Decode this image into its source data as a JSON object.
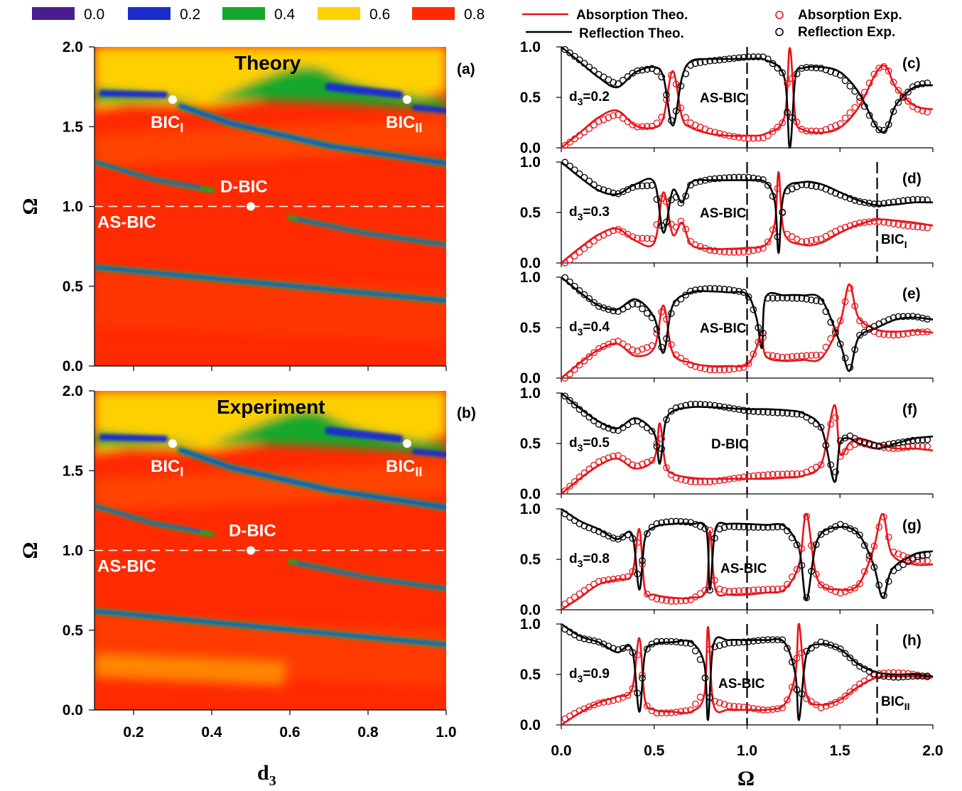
{
  "colorbar": {
    "items": [
      {
        "label": "0.0",
        "color": "#4b1e8f"
      },
      {
        "label": "0.2",
        "color": "#1a2dcc"
      },
      {
        "label": "0.4",
        "color": "#16a82a"
      },
      {
        "label": "0.6",
        "color": "#ffd000"
      },
      {
        "label": "0.8",
        "color": "#ff2a00"
      }
    ]
  },
  "legend": {
    "abs_theo": "Absorption Theo.",
    "ref_theo": "Reflection Theo.",
    "abs_exp": "Absorption Exp.",
    "ref_exp": "Reflection Exp.",
    "abs_color": "#e8141b",
    "ref_color": "#000000"
  },
  "left": {
    "xlabel": "d3",
    "xticks": [
      "0.2",
      "0.4",
      "0.6",
      "0.8",
      "1.0"
    ],
    "ylabel": "Ω",
    "yticks": [
      "0.0",
      "0.5",
      "1.0",
      "1.5",
      "2.0"
    ],
    "panels": [
      {
        "id": "a",
        "tag": "(a)",
        "title": "Theory",
        "bic1": "BIC",
        "bic1sub": "I",
        "bic2": "BIC",
        "bic2sub": "II",
        "dbic": "D-BIC",
        "asbic": "AS-BIC"
      },
      {
        "id": "b",
        "tag": "(b)",
        "title": "Experiment",
        "bic1": "BIC",
        "bic1sub": "I",
        "bic2": "BIC",
        "bic2sub": "II",
        "dbic": "D-BIC",
        "asbic": "AS-BIC"
      }
    ]
  },
  "right": {
    "xlabel": "Ω",
    "xticks": [
      "0.0",
      "0.5",
      "1.0",
      "1.5",
      "2.0"
    ],
    "yticks": [
      "0.0",
      "0.5",
      "1.0"
    ],
    "panels": [
      {
        "id": "c",
        "tag": "(c)",
        "d3": "d",
        "d3sub": "3",
        "d3val": "=0.2",
        "center": "AS-BIC"
      },
      {
        "id": "d",
        "tag": "(d)",
        "d3": "d",
        "d3sub": "3",
        "d3val": "=0.3",
        "center": "AS-BIC",
        "side": "BIC",
        "sidesub": "I"
      },
      {
        "id": "e",
        "tag": "(e)",
        "d3": "d",
        "d3sub": "3",
        "d3val": "=0.4",
        "center": "AS-BIC"
      },
      {
        "id": "f",
        "tag": "(f)",
        "d3": "d",
        "d3sub": "3",
        "d3val": "=0.5",
        "center": "D-BIC"
      },
      {
        "id": "g",
        "tag": "(g)",
        "d3": "d",
        "d3sub": "3",
        "d3val": "=0.8",
        "center": "AS-BIC"
      },
      {
        "id": "h",
        "tag": "(h)",
        "d3": "d",
        "d3sub": "3",
        "d3val": "=0.9",
        "center": "AS-BIC",
        "side": "BIC",
        "sidesub": "II"
      }
    ]
  },
  "chart_data": [
    {
      "type": "heatmap",
      "panel": "(a)",
      "title": "Theory",
      "xlabel": "d3",
      "ylabel": "Ω",
      "xlim": [
        0.1,
        1.0
      ],
      "ylim": [
        0.0,
        2.0
      ],
      "colorbar_levels": [
        0.0,
        0.2,
        0.4,
        0.6,
        0.8
      ],
      "points": [
        {
          "name": "BIC_I",
          "x": 0.3,
          "y": 1.67
        },
        {
          "name": "BIC_II",
          "x": 0.9,
          "y": 1.67
        },
        {
          "name": "D-BIC",
          "x": 0.5,
          "y": 1.0
        }
      ],
      "reference_line": {
        "name": "AS-BIC",
        "y": 1.0
      }
    },
    {
      "type": "heatmap",
      "panel": "(b)",
      "title": "Experiment",
      "xlabel": "d3",
      "ylabel": "Ω",
      "xlim": [
        0.1,
        1.0
      ],
      "ylim": [
        0.0,
        2.0
      ],
      "colorbar_levels": [
        0.0,
        0.2,
        0.4,
        0.6,
        0.8
      ],
      "points": [
        {
          "name": "BIC_I",
          "x": 0.3,
          "y": 1.67
        },
        {
          "name": "BIC_II",
          "x": 0.9,
          "y": 1.67
        },
        {
          "name": "D-BIC",
          "x": 0.5,
          "y": 1.0
        }
      ],
      "reference_line": {
        "name": "AS-BIC",
        "y": 1.0
      }
    },
    {
      "type": "line",
      "panel": "(c)",
      "d3": 0.2,
      "xlim": [
        0,
        2
      ],
      "ylim": [
        0,
        1
      ],
      "vlines": [
        1.0
      ],
      "x": [
        0.0,
        0.1,
        0.2,
        0.3,
        0.4,
        0.5,
        0.55,
        0.6,
        0.65,
        0.7,
        0.8,
        0.9,
        1.0,
        1.1,
        1.2,
        1.23,
        1.26,
        1.3,
        1.4,
        1.5,
        1.6,
        1.7,
        1.75,
        1.8,
        1.9,
        2.0
      ],
      "series": [
        {
          "name": "Absorption Theo.",
          "values": [
            0.0,
            0.15,
            0.3,
            0.37,
            0.22,
            0.2,
            0.3,
            0.76,
            0.3,
            0.2,
            0.14,
            0.12,
            0.12,
            0.14,
            0.3,
            0.99,
            0.3,
            0.18,
            0.15,
            0.2,
            0.4,
            0.76,
            0.8,
            0.6,
            0.42,
            0.38
          ]
        },
        {
          "name": "Reflection Theo.",
          "values": [
            1.0,
            0.85,
            0.7,
            0.6,
            0.75,
            0.8,
            0.7,
            0.22,
            0.7,
            0.86,
            0.88,
            0.88,
            0.88,
            0.87,
            0.7,
            0.0,
            0.7,
            0.79,
            0.8,
            0.75,
            0.55,
            0.2,
            0.18,
            0.42,
            0.6,
            0.62
          ]
        }
      ]
    },
    {
      "type": "line",
      "panel": "(d)",
      "d3": 0.3,
      "xlim": [
        0,
        2
      ],
      "ylim": [
        0,
        1
      ],
      "vlines": [
        1.0,
        1.7
      ],
      "x": [
        0.0,
        0.1,
        0.2,
        0.3,
        0.4,
        0.5,
        0.55,
        0.6,
        0.65,
        0.7,
        0.8,
        0.9,
        1.0,
        1.1,
        1.15,
        1.17,
        1.2,
        1.3,
        1.4,
        1.5,
        1.6,
        1.7,
        1.8,
        1.9,
        2.0
      ],
      "series": [
        {
          "name": "Absorption Theo.",
          "values": [
            0.0,
            0.15,
            0.28,
            0.34,
            0.22,
            0.2,
            0.7,
            0.28,
            0.4,
            0.18,
            0.14,
            0.14,
            0.15,
            0.18,
            0.4,
            0.9,
            0.3,
            0.18,
            0.2,
            0.3,
            0.38,
            0.43,
            0.42,
            0.4,
            0.37
          ]
        },
        {
          "name": "Reflection Theo.",
          "values": [
            1.0,
            0.85,
            0.72,
            0.68,
            0.78,
            0.8,
            0.3,
            0.72,
            0.6,
            0.8,
            0.82,
            0.82,
            0.82,
            0.8,
            0.6,
            0.1,
            0.7,
            0.8,
            0.78,
            0.7,
            0.62,
            0.57,
            0.58,
            0.6,
            0.6
          ]
        }
      ]
    },
    {
      "type": "line",
      "panel": "(e)",
      "d3": 0.4,
      "xlim": [
        0,
        2
      ],
      "ylim": [
        0,
        1
      ],
      "vlines": [
        1.0
      ],
      "x": [
        0.0,
        0.1,
        0.2,
        0.3,
        0.4,
        0.5,
        0.55,
        0.6,
        0.7,
        0.8,
        0.9,
        1.0,
        1.05,
        1.08,
        1.1,
        1.2,
        1.3,
        1.4,
        1.5,
        1.55,
        1.6,
        1.7,
        1.8,
        1.9,
        2.0
      ],
      "series": [
        {
          "name": "Absorption Theo.",
          "values": [
            0.0,
            0.15,
            0.28,
            0.34,
            0.22,
            0.3,
            0.72,
            0.25,
            0.15,
            0.12,
            0.12,
            0.13,
            0.3,
            0.47,
            0.22,
            0.17,
            0.18,
            0.2,
            0.55,
            0.93,
            0.6,
            0.48,
            0.46,
            0.47,
            0.45
          ]
        },
        {
          "name": "Reflection Theo.",
          "values": [
            1.0,
            0.85,
            0.72,
            0.68,
            0.78,
            0.6,
            0.25,
            0.72,
            0.85,
            0.86,
            0.85,
            0.83,
            0.6,
            0.3,
            0.8,
            0.82,
            0.82,
            0.78,
            0.35,
            0.07,
            0.4,
            0.5,
            0.58,
            0.6,
            0.58
          ]
        }
      ]
    },
    {
      "type": "line",
      "panel": "(f)",
      "d3": 0.5,
      "xlim": [
        0,
        2
      ],
      "ylim": [
        0,
        1
      ],
      "vlines": [
        1.0
      ],
      "x": [
        0.0,
        0.1,
        0.2,
        0.3,
        0.4,
        0.5,
        0.53,
        0.56,
        0.6,
        0.7,
        0.8,
        0.9,
        1.0,
        1.1,
        1.2,
        1.3,
        1.4,
        1.47,
        1.5,
        1.55,
        1.6,
        1.7,
        1.8,
        1.9,
        2.0
      ],
      "series": [
        {
          "name": "Absorption Theo.",
          "values": [
            0.0,
            0.15,
            0.28,
            0.35,
            0.25,
            0.35,
            0.7,
            0.3,
            0.2,
            0.16,
            0.15,
            0.15,
            0.15,
            0.15,
            0.16,
            0.18,
            0.3,
            0.88,
            0.4,
            0.5,
            0.55,
            0.5,
            0.45,
            0.45,
            0.43
          ]
        },
        {
          "name": "Reflection Theo.",
          "values": [
            1.0,
            0.85,
            0.72,
            0.65,
            0.75,
            0.6,
            0.3,
            0.7,
            0.82,
            0.86,
            0.86,
            0.85,
            0.84,
            0.84,
            0.83,
            0.8,
            0.65,
            0.12,
            0.5,
            0.55,
            0.5,
            0.45,
            0.5,
            0.55,
            0.57
          ]
        }
      ]
    },
    {
      "type": "line",
      "panel": "(g)",
      "d3": 0.8,
      "xlim": [
        0,
        2
      ],
      "ylim": [
        0,
        1
      ],
      "vlines": [
        1.0
      ],
      "x": [
        0.0,
        0.1,
        0.2,
        0.3,
        0.38,
        0.42,
        0.45,
        0.5,
        0.6,
        0.7,
        0.78,
        0.8,
        0.83,
        0.9,
        1.0,
        1.1,
        1.2,
        1.28,
        1.32,
        1.38,
        1.5,
        1.6,
        1.68,
        1.73,
        1.78,
        1.9,
        2.0
      ],
      "series": [
        {
          "name": "Absorption Theo.",
          "values": [
            0.0,
            0.12,
            0.25,
            0.3,
            0.35,
            0.8,
            0.2,
            0.15,
            0.12,
            0.12,
            0.2,
            0.78,
            0.2,
            0.15,
            0.15,
            0.17,
            0.2,
            0.45,
            0.95,
            0.3,
            0.2,
            0.25,
            0.6,
            0.95,
            0.55,
            0.45,
            0.45
          ]
        },
        {
          "name": "Reflection Theo.",
          "values": [
            1.0,
            0.88,
            0.8,
            0.7,
            0.75,
            0.2,
            0.7,
            0.82,
            0.85,
            0.85,
            0.8,
            0.2,
            0.8,
            0.85,
            0.85,
            0.84,
            0.83,
            0.6,
            0.1,
            0.7,
            0.82,
            0.75,
            0.45,
            0.12,
            0.4,
            0.55,
            0.58
          ]
        }
      ]
    },
    {
      "type": "line",
      "panel": "(h)",
      "d3": 0.9,
      "xlim": [
        0,
        2
      ],
      "ylim": [
        0,
        1
      ],
      "vlines": [
        1.0,
        1.7
      ],
      "x": [
        0.0,
        0.1,
        0.2,
        0.3,
        0.38,
        0.42,
        0.45,
        0.5,
        0.6,
        0.7,
        0.77,
        0.79,
        0.82,
        0.9,
        1.0,
        1.1,
        1.2,
        1.26,
        1.28,
        1.32,
        1.4,
        1.5,
        1.6,
        1.7,
        1.8,
        1.9,
        2.0
      ],
      "series": [
        {
          "name": "Absorption Theo.",
          "values": [
            0.0,
            0.12,
            0.22,
            0.28,
            0.35,
            0.86,
            0.25,
            0.15,
            0.13,
            0.13,
            0.3,
            0.97,
            0.2,
            0.15,
            0.15,
            0.15,
            0.2,
            0.5,
            1.0,
            0.3,
            0.2,
            0.25,
            0.38,
            0.47,
            0.48,
            0.48,
            0.47
          ]
        },
        {
          "name": "Reflection Theo.",
          "values": [
            1.0,
            0.88,
            0.82,
            0.72,
            0.75,
            0.13,
            0.7,
            0.8,
            0.82,
            0.82,
            0.6,
            0.05,
            0.8,
            0.84,
            0.84,
            0.84,
            0.82,
            0.5,
            0.05,
            0.7,
            0.8,
            0.75,
            0.6,
            0.52,
            0.5,
            0.5,
            0.48
          ]
        }
      ]
    }
  ]
}
